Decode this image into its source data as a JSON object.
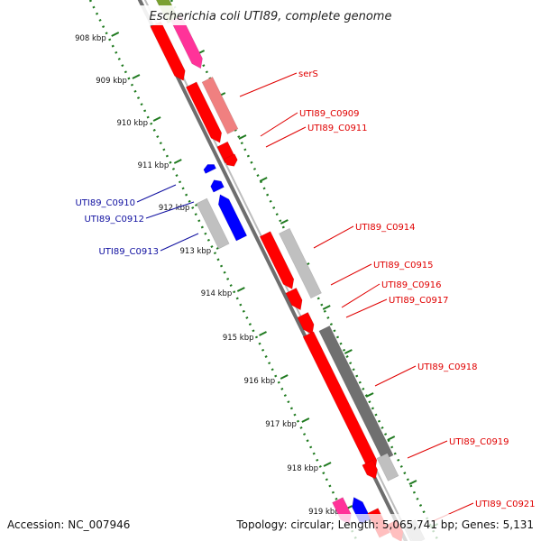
{
  "title": "Escherichia coli UTI89, complete genome",
  "footer": {
    "accession": "Accession: NC_007946",
    "summary": "Topology: circular; Length: 5,065,741 bp; Genes: 5,131"
  },
  "scale": {
    "ticks": [
      "908 kbp",
      "909 kbp",
      "910 kbp",
      "911 kbp",
      "912 kbp",
      "913 kbp",
      "914 kbp",
      "915 kbp",
      "916 kbp",
      "917 kbp",
      "918 kbp",
      "919 kbp"
    ]
  },
  "colors": {
    "forward_cds": "#ff0000",
    "reverse_cds": "#0000ff",
    "rna_pink": "#ff3399",
    "light_red": "#f08080",
    "gray_light": "#c0c0c0",
    "gray_dark": "#707070",
    "olive": "#7aa030",
    "backbone": "#8c8c8c",
    "ticks": "#1f7a1f",
    "label_red": "#e00000",
    "label_blue": "#1010a0"
  },
  "labels_forward": [
    "serS",
    "UTI89_C0909",
    "UTI89_C0911",
    "UTI89_C0914",
    "UTI89_C0915",
    "UTI89_C0916",
    "UTI89_C0917",
    "UTI89_C0918",
    "UTI89_C0919",
    "UTI89_C0921"
  ],
  "labels_reverse": [
    "UTI89_C0910",
    "UTI89_C0912",
    "UTI89_C0913"
  ]
}
